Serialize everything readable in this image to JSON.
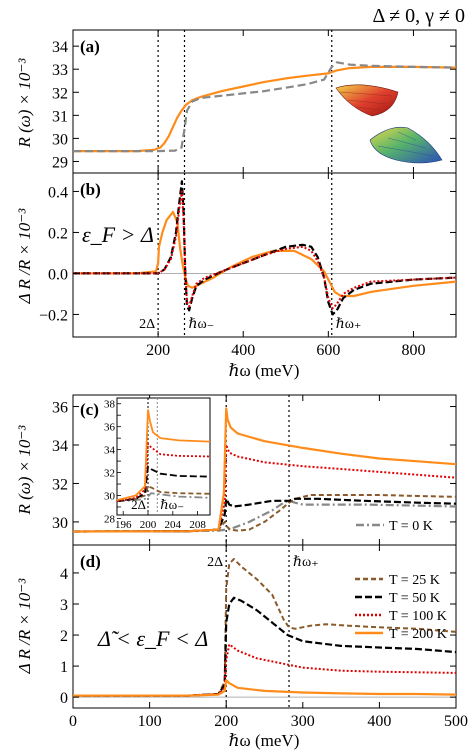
{
  "header": {
    "condition": "Δ ≠ 0, γ ≠ 0"
  },
  "colors": {
    "T0": "#888888",
    "T25": "#8a5a2b",
    "T50": "#000000",
    "T100": "#e00000",
    "T200": "#ff8c1a",
    "orange": "#ff8c1a",
    "black": "#000000",
    "gray": "#888888",
    "zero_line": "#b0b0b0"
  },
  "chart_data": [
    {
      "type": "line",
      "panel": "a",
      "panel_label": "(a)",
      "ylabel": "R (ω) × 10⁻³",
      "xlim": [
        0,
        900
      ],
      "ylim": [
        28.5,
        34.7
      ],
      "yticks": [
        29,
        30,
        31,
        32,
        33,
        34
      ],
      "xticks": [
        200,
        400,
        600,
        800
      ],
      "show_xtick_labels": false,
      "vlines": [
        200,
        262,
        608
      ],
      "series": [
        {
          "style": "orange-solid",
          "x": [
            0,
            150,
            190,
            205,
            215,
            225,
            235,
            245,
            255,
            265,
            280,
            300,
            350,
            400,
            450,
            500,
            550,
            600,
            620,
            650,
            700,
            800,
            900
          ],
          "y": [
            29.45,
            29.45,
            29.5,
            29.6,
            29.8,
            30.1,
            30.5,
            30.9,
            31.2,
            31.45,
            31.65,
            31.8,
            32.05,
            32.25,
            32.45,
            32.6,
            32.72,
            32.82,
            32.95,
            33.05,
            33.1,
            33.1,
            33.07
          ]
        },
        {
          "style": "gray-dashed",
          "x": [
            0,
            150,
            200,
            240,
            255,
            262,
            268,
            280,
            300,
            350,
            400,
            450,
            500,
            550,
            590,
            608,
            620,
            650,
            700,
            800,
            900
          ],
          "y": [
            29.45,
            29.45,
            29.45,
            29.47,
            29.6,
            30.4,
            31.2,
            31.6,
            31.75,
            31.85,
            31.95,
            32.05,
            32.2,
            32.35,
            32.55,
            33.1,
            33.3,
            33.2,
            33.15,
            33.1,
            33.07
          ]
        }
      ]
    },
    {
      "type": "line",
      "panel": "b",
      "panel_label": "(b)",
      "ylabel": "Δ R /R × 10⁻³",
      "annotation": "ε_F > Δ",
      "xlabel": "ℏω (meV)",
      "xlim": [
        0,
        900
      ],
      "ylim": [
        -0.31,
        0.49
      ],
      "yticks": [
        -0.2,
        0.0,
        0.2,
        0.4
      ],
      "ytick_labels": [
        "−0.2",
        "0.0",
        "0.2",
        "0.4"
      ],
      "xticks": [
        200,
        400,
        600,
        800
      ],
      "xtick_labels": [
        "200",
        "400",
        "600",
        "800"
      ],
      "vlines": [
        200,
        262,
        608
      ],
      "vline_labels": [
        "2Δ",
        "ℏω₋",
        "ℏω₊"
      ],
      "series": [
        {
          "style": "orange-solid",
          "x": [
            0,
            150,
            195,
            200,
            202,
            210,
            220,
            235,
            245,
            252,
            258,
            264,
            270,
            280,
            300,
            330,
            370,
            420,
            470,
            520,
            560,
            590,
            605,
            615,
            630,
            660,
            700,
            800,
            900
          ],
          "y": [
            0.0,
            0.0,
            0.01,
            0.05,
            0.13,
            0.2,
            0.26,
            0.3,
            0.25,
            0.12,
            0.04,
            -0.02,
            -0.06,
            -0.07,
            -0.05,
            -0.02,
            0.03,
            0.08,
            0.11,
            0.11,
            0.07,
            0.01,
            -0.05,
            -0.09,
            -0.11,
            -0.11,
            -0.09,
            -0.06,
            -0.04
          ]
        },
        {
          "style": "black-dashed",
          "x": [
            0,
            150,
            200,
            215,
            230,
            242,
            250,
            256,
            260,
            264,
            268,
            273,
            280,
            290,
            310,
            350,
            400,
            450,
            500,
            540,
            560,
            575,
            590,
            600,
            610,
            620,
            635,
            660,
            700,
            800,
            900
          ],
          "y": [
            0.0,
            0.0,
            0.0,
            0.02,
            0.08,
            0.2,
            0.35,
            0.45,
            0.3,
            0.0,
            -0.16,
            -0.18,
            -0.12,
            -0.06,
            -0.03,
            0.01,
            0.05,
            0.09,
            0.13,
            0.14,
            0.13,
            0.08,
            -0.02,
            -0.14,
            -0.2,
            -0.18,
            -0.12,
            -0.08,
            -0.05,
            -0.03,
            -0.02
          ]
        },
        {
          "style": "red-dotted",
          "x": [
            0,
            150,
            200,
            215,
            230,
            242,
            250,
            256,
            260,
            264,
            268,
            273,
            280,
            290,
            310,
            350,
            400,
            450,
            500,
            540,
            560,
            575,
            590,
            600,
            610,
            620,
            635,
            660,
            700,
            800,
            900
          ],
          "y": [
            0.0,
            0.0,
            0.0,
            0.02,
            0.07,
            0.18,
            0.32,
            0.4,
            0.27,
            0.0,
            -0.14,
            -0.16,
            -0.11,
            -0.05,
            -0.02,
            0.01,
            0.05,
            0.09,
            0.12,
            0.13,
            0.11,
            0.06,
            -0.02,
            -0.12,
            -0.17,
            -0.15,
            -0.1,
            -0.07,
            -0.04,
            -0.03,
            -0.02
          ]
        }
      ]
    },
    {
      "type": "line",
      "panel": "c",
      "panel_label": "(c)",
      "ylabel": "R (ω) × 10⁻³",
      "xlim": [
        0,
        500
      ],
      "ylim": [
        28.8,
        36.6
      ],
      "yticks": [
        30,
        32,
        34,
        36
      ],
      "xticks": [
        100,
        200,
        300,
        400
      ],
      "show_xtick_labels": false,
      "vlines": [
        200,
        282
      ],
      "series": [
        {
          "name": "T = 0 K",
          "style": "T0",
          "x": [
            0,
            150,
            190,
            200,
            210,
            230,
            260,
            275,
            282,
            290,
            300,
            330,
            380,
            450,
            500
          ],
          "y": [
            29.5,
            29.52,
            29.55,
            29.6,
            29.7,
            30.0,
            30.6,
            31.0,
            31.1,
            31.0,
            30.9,
            30.9,
            30.9,
            30.85,
            30.8
          ]
        },
        {
          "name": "T = 25 K",
          "style": "T25",
          "x": [
            0,
            150,
            190,
            198,
            200,
            205,
            215,
            230,
            250,
            270,
            282,
            290,
            310,
            350,
            400,
            450,
            500
          ],
          "y": [
            29.5,
            29.52,
            29.6,
            30.0,
            29.8,
            29.6,
            29.55,
            29.6,
            30.0,
            30.6,
            31.0,
            31.2,
            31.4,
            31.4,
            31.4,
            31.35,
            31.3
          ]
        },
        {
          "name": "T = 50 K",
          "style": "T50",
          "x": [
            0,
            150,
            190,
            198,
            200,
            204,
            210,
            230,
            260,
            282,
            290,
            320,
            380,
            450,
            500
          ],
          "y": [
            29.5,
            29.52,
            29.6,
            30.4,
            31.2,
            30.9,
            30.8,
            30.9,
            31.1,
            31.1,
            31.2,
            31.2,
            31.1,
            31.0,
            30.95
          ]
        },
        {
          "name": "T = 100 K",
          "style": "T100",
          "x": [
            0,
            150,
            190,
            198,
            200,
            204,
            215,
            250,
            300,
            350,
            400,
            450,
            500
          ],
          "y": [
            29.5,
            29.52,
            29.6,
            31.0,
            34.0,
            33.6,
            33.4,
            33.1,
            32.9,
            32.75,
            32.6,
            32.45,
            32.3
          ]
        },
        {
          "name": "T = 200 K",
          "style": "T200",
          "x": [
            0,
            150,
            190,
            197,
            200,
            202,
            206,
            215,
            250,
            300,
            350,
            400,
            450,
            500
          ],
          "y": [
            29.5,
            29.52,
            29.6,
            31.5,
            35.9,
            35.3,
            34.9,
            34.6,
            34.2,
            33.85,
            33.55,
            33.3,
            33.15,
            33.0
          ]
        }
      ],
      "inset": {
        "xlim": [
          195,
          210
        ],
        "ylim": [
          28.3,
          38.5
        ],
        "xticks": [
          196,
          200,
          204,
          208
        ],
        "xtick_labels": [
          "196",
          "200",
          "204",
          "208"
        ],
        "yticks": [
          28,
          29,
          30,
          31,
          32,
          33,
          34,
          35,
          36,
          37,
          38
        ],
        "ytick_labels": [
          "28",
          "",
          "30",
          "",
          "32",
          "",
          "34",
          "",
          "36",
          "",
          "38"
        ],
        "vline_labels": [
          "2Δ",
          "ℏω₋"
        ],
        "vlines": [
          200,
          201.5
        ],
        "series": [
          {
            "style": "T0",
            "x": [
              195,
              198,
              199.5,
              200,
              200.5,
              202,
              205,
              210
            ],
            "y": [
              29.5,
              29.6,
              29.7,
              29.9,
              30.2,
              30.1,
              29.9,
              29.8
            ]
          },
          {
            "style": "T25",
            "x": [
              195,
              198,
              199.5,
              200,
              200.5,
              202,
              205,
              210
            ],
            "y": [
              29.5,
              29.7,
              30.0,
              30.8,
              30.7,
              30.3,
              30.2,
              30.15
            ]
          },
          {
            "style": "T50",
            "x": [
              195,
              198,
              199.5,
              200,
              200.5,
              202,
              205,
              210
            ],
            "y": [
              29.5,
              29.7,
              30.2,
              32.5,
              32.3,
              31.9,
              31.7,
              31.65
            ]
          },
          {
            "style": "T100",
            "x": [
              195,
              198,
              199.5,
              200,
              200.5,
              202,
              205,
              210
            ],
            "y": [
              29.5,
              29.8,
              30.5,
              34.5,
              34.2,
              33.6,
              33.45,
              33.4
            ]
          },
          {
            "style": "T200",
            "x": [
              195,
              198,
              199.5,
              200,
              200.3,
              200.8,
              202,
              205,
              210
            ],
            "y": [
              29.6,
              30.0,
              30.8,
              37.5,
              36.5,
              35.5,
              35.0,
              34.8,
              34.7
            ]
          }
        ]
      }
    },
    {
      "type": "line",
      "panel": "d",
      "panel_label": "(d)",
      "ylabel": "Δ R /R × 10⁻³",
      "annotation": "Δ̃ < ε_F < Δ",
      "xlabel": "ℏω (meV)",
      "xlim": [
        0,
        500
      ],
      "ylim": [
        -0.35,
        4.9
      ],
      "yticks": [
        0,
        1,
        2,
        3,
        4
      ],
      "xticks": [
        0,
        100,
        200,
        300,
        400,
        500
      ],
      "xtick_labels": [
        "0",
        "100",
        "200",
        "300",
        "400",
        "500"
      ],
      "vlines": [
        200,
        282
      ],
      "vline_labels": [
        "2Δ",
        "ℏω₊"
      ],
      "legend_position": "top-right",
      "series": [
        {
          "name": "T = 25 K",
          "style": "T25",
          "x": [
            0,
            150,
            190,
            198,
            200,
            204,
            210,
            220,
            240,
            260,
            275,
            282,
            290,
            310,
            330,
            360,
            400,
            450,
            500
          ],
          "y": [
            0.05,
            0.05,
            0.1,
            0.5,
            3.5,
            4.3,
            4.45,
            4.2,
            3.8,
            3.3,
            2.5,
            2.25,
            2.2,
            2.3,
            2.35,
            2.3,
            2.25,
            2.2,
            2.1
          ]
        },
        {
          "name": "T = 50 K",
          "style": "T50",
          "x": [
            0,
            150,
            190,
            198,
            200,
            204,
            210,
            220,
            240,
            260,
            280,
            300,
            350,
            400,
            450,
            500
          ],
          "y": [
            0.05,
            0.05,
            0.1,
            0.4,
            2.4,
            3.0,
            3.2,
            3.1,
            2.8,
            2.4,
            2.0,
            1.8,
            1.65,
            1.6,
            1.55,
            1.45
          ]
        },
        {
          "name": "T = 100 K",
          "style": "T100",
          "x": [
            0,
            150,
            190,
            198,
            200,
            204,
            215,
            240,
            270,
            300,
            350,
            400,
            450,
            500
          ],
          "y": [
            0.05,
            0.05,
            0.1,
            0.3,
            1.2,
            1.7,
            1.5,
            1.25,
            1.1,
            0.95,
            0.85,
            0.82,
            0.8,
            0.78
          ]
        },
        {
          "name": "T = 200 K",
          "style": "T200",
          "x": [
            0,
            150,
            190,
            198,
            200,
            204,
            215,
            250,
            300,
            350,
            400,
            450,
            500
          ],
          "y": [
            0.05,
            0.05,
            0.08,
            0.2,
            0.55,
            0.45,
            0.3,
            0.2,
            0.15,
            0.12,
            0.1,
            0.1,
            0.08
          ]
        }
      ]
    }
  ],
  "legend": [
    {
      "name": "T = 0 K",
      "style": "T0"
    },
    {
      "name": "T = 25 K",
      "style": "T25"
    },
    {
      "name": "T = 50 K",
      "style": "T50"
    },
    {
      "name": "T = 100 K",
      "style": "T100"
    },
    {
      "name": "T = 200 K",
      "style": "T200"
    }
  ]
}
